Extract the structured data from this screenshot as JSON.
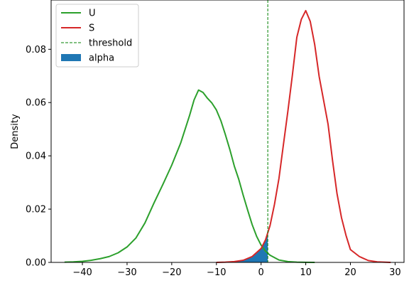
{
  "chart_data": {
    "type": "area",
    "title": "",
    "xlabel": "",
    "ylabel": "Density",
    "xlim": [
      -47,
      32
    ],
    "ylim": [
      0,
      0.0985
    ],
    "xticks": [
      -40,
      -30,
      -20,
      -10,
      0,
      10,
      20,
      30
    ],
    "yticks": [
      0.0,
      0.02,
      0.04,
      0.06,
      0.08
    ],
    "ytick_labels": [
      "0.00",
      "0.02",
      "0.04",
      "0.06",
      "0.08"
    ],
    "grid": false,
    "legend_position": "top-left",
    "threshold": 1.5,
    "series": [
      {
        "name": "U",
        "color": "#2ca02c",
        "x": [
          -44,
          -42,
          -40,
          -38,
          -36,
          -34,
          -32,
          -30,
          -28,
          -26,
          -24,
          -22,
          -20,
          -18,
          -16,
          -15,
          -14,
          -13,
          -12,
          -11,
          -10,
          -9,
          -8,
          -7,
          -6,
          -5,
          -4,
          -3,
          -2,
          -1,
          0,
          1,
          2,
          3,
          4,
          6,
          8,
          10,
          12
        ],
        "y": [
          0.0001,
          0.0002,
          0.0004,
          0.0008,
          0.0014,
          0.0022,
          0.0036,
          0.0058,
          0.0092,
          0.0148,
          0.0222,
          0.0292,
          0.0365,
          0.0448,
          0.0552,
          0.061,
          0.0647,
          0.0638,
          0.0616,
          0.0598,
          0.0572,
          0.0532,
          0.048,
          0.0424,
          0.0362,
          0.0312,
          0.0252,
          0.0196,
          0.0142,
          0.0098,
          0.0065,
          0.0042,
          0.0027,
          0.0018,
          0.0009,
          0.0003,
          0.0001,
          3e-05,
          0.0
        ]
      },
      {
        "name": "S",
        "color": "#d62728",
        "x": [
          -10,
          -8,
          -6,
          -4,
          -2,
          0,
          1,
          2,
          3,
          4,
          5,
          6,
          7,
          8,
          9,
          10,
          11,
          12,
          13,
          14,
          15,
          16,
          17,
          18,
          19,
          20,
          22,
          24,
          26,
          29
        ],
        "y": [
          0.0,
          0.0001,
          0.0003,
          0.0008,
          0.0022,
          0.0052,
          0.0085,
          0.0138,
          0.0218,
          0.0315,
          0.0442,
          0.0568,
          0.0702,
          0.0845,
          0.0912,
          0.0945,
          0.0905,
          0.0818,
          0.0698,
          0.0608,
          0.0518,
          0.0382,
          0.0258,
          0.0168,
          0.0102,
          0.0048,
          0.0022,
          0.0007,
          0.0002,
          0.0
        ]
      }
    ],
    "alpha_region": {
      "name": "alpha",
      "color": "#1f77b4",
      "from_series": "S",
      "x_max": 1.5
    },
    "legend": [
      {
        "label": "U",
        "style": "line",
        "color": "#2ca02c"
      },
      {
        "label": "S",
        "style": "line",
        "color": "#d62728"
      },
      {
        "label": "threshold",
        "style": "dashed",
        "color": "#008000"
      },
      {
        "label": "alpha",
        "style": "patch",
        "color": "#1f77b4"
      }
    ]
  }
}
